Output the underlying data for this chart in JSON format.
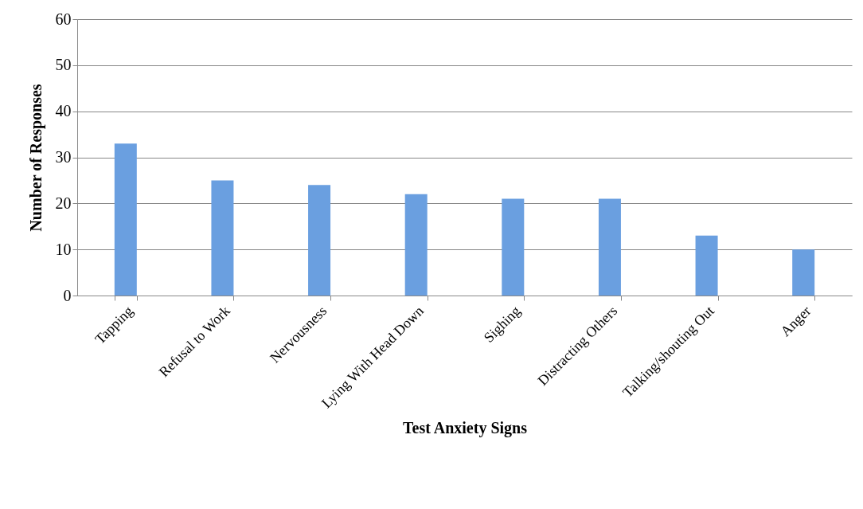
{
  "chart_data": {
    "type": "bar",
    "xlabel": "Test Anxiety Signs",
    "ylabel": "Number of Responses",
    "categories": [
      "Tapping",
      "Refusal to Work",
      "Nervousness",
      "Lying With Head Down",
      "Sighing",
      "Distracting Others",
      "Talking/shouting Out",
      "Anger"
    ],
    "values": [
      33,
      25,
      24,
      22,
      21,
      21,
      13,
      10
    ],
    "color": "#6a9fe0",
    "ylim": [
      0,
      60
    ],
    "yticks": [
      0,
      10,
      20,
      30,
      40,
      50,
      60
    ],
    "grid": "y"
  }
}
